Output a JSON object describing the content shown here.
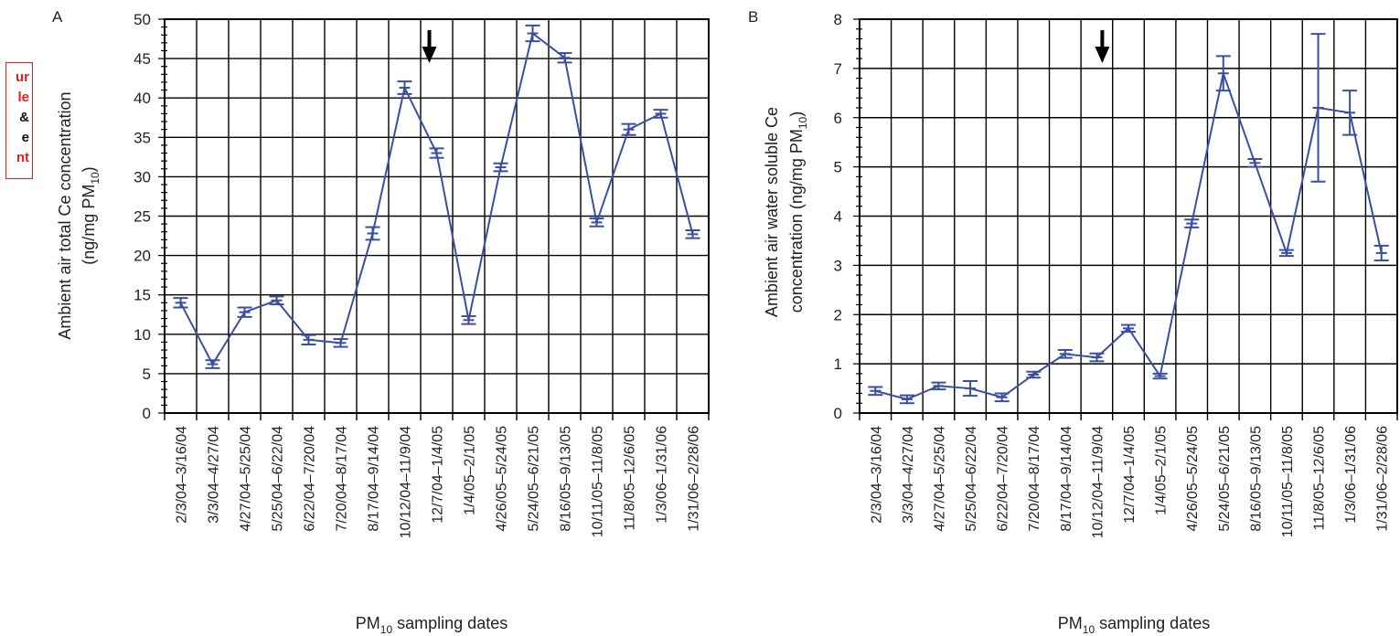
{
  "logo_fragment": [
    "ur",
    "le",
    "&",
    "e",
    "nt"
  ],
  "chart_data": [
    {
      "type": "line",
      "panel_label": "A",
      "ylabel_line1": "Ambient air total Ce concentration",
      "ylabel_line2": "(ng/mg PM",
      "ylabel_sub": "10",
      "ylabel_close": ")",
      "xlabel": "PM",
      "xlabel_sub": "10",
      "xlabel_rest": " sampling dates",
      "ylim": [
        0,
        50
      ],
      "yticks": [
        0,
        5,
        10,
        15,
        20,
        25,
        30,
        35,
        40,
        45,
        50
      ],
      "categories": [
        "2/3/04–3/16/04",
        "3/3/04–4/27/04",
        "4/27/04–5/25/04",
        "5/25/04–6/22/04",
        "6/22/04–7/20/04",
        "7/20/04–8/17/04",
        "8/17/04–9/14/04",
        "10/12/04–11/9/04",
        "12/7/04–1/4/05",
        "1/4/05–2/1/05",
        "4/26/05–5/24/05",
        "5/24/05–6/21/05",
        "8/16/05–9/13/05",
        "10/11/05–11/8/05",
        "11/8/05–12/6/05",
        "1/3/06–1/31/06",
        "1/31/06–2/28/06"
      ],
      "values": [
        14.0,
        6.2,
        12.8,
        14.3,
        9.3,
        8.9,
        22.8,
        41.3,
        33.0,
        11.8,
        31.2,
        48.2,
        45.1,
        24.2,
        36.0,
        38.0,
        22.7
      ],
      "errors": [
        0.6,
        0.5,
        0.6,
        0.5,
        0.6,
        0.5,
        0.8,
        0.8,
        0.6,
        0.5,
        0.5,
        1.0,
        0.6,
        0.5,
        0.7,
        0.5,
        0.5
      ],
      "arrow_index": 8,
      "color": "#3a4fa0",
      "grid": true
    },
    {
      "type": "line",
      "panel_label": "B",
      "ylabel_line1": "Ambient air water soluble Ce",
      "ylabel_line2": "concentration (ng/mg PM",
      "ylabel_sub": "10",
      "ylabel_close": ")",
      "xlabel": "PM",
      "xlabel_sub": "10",
      "xlabel_rest": " sampling dates",
      "ylim": [
        0,
        8
      ],
      "yticks": [
        0,
        1,
        2,
        3,
        4,
        5,
        6,
        7,
        8
      ],
      "categories": [
        "2/3/04–3/16/04",
        "3/3/04–4/27/04",
        "4/27/04–5/25/04",
        "5/25/04–6/22/04",
        "6/22/04–7/20/04",
        "7/20/04–8/17/04",
        "8/17/04–9/14/04",
        "10/12/04–11/9/04",
        "12/7/04–1/4/05",
        "1/4/05–2/1/05",
        "4/26/05–5/24/05",
        "5/24/05–6/21/05",
        "8/16/05–9/13/05",
        "10/11/05–11/8/05",
        "11/8/05–12/6/05",
        "1/3/06–1/31/06",
        "1/31/06–2/28/06"
      ],
      "values": [
        0.45,
        0.28,
        0.55,
        0.5,
        0.32,
        0.78,
        1.2,
        1.13,
        1.72,
        0.75,
        3.85,
        6.9,
        5.08,
        3.25,
        6.2,
        6.1,
        3.25
      ],
      "errors": [
        0.08,
        0.08,
        0.07,
        0.15,
        0.08,
        0.06,
        0.08,
        0.08,
        0.07,
        0.05,
        0.08,
        0.35,
        0.08,
        0.06,
        1.5,
        0.45,
        0.15
      ],
      "arrow_index": 7,
      "color": "#3a4fa0",
      "grid": true
    }
  ]
}
